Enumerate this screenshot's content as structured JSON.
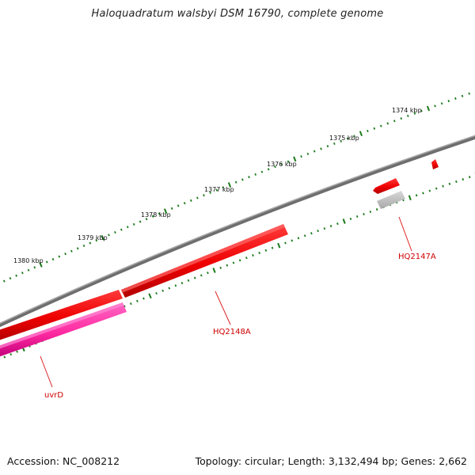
{
  "title": "Haloquadratum walsbyi DSM 16790, complete genome",
  "footer": {
    "accession": "Accession: NC_008212",
    "summary": "Topology: circular; Length: 3,132,494 bp; Genes: 2,662"
  },
  "ruler": {
    "tick_labels": [
      "1374 kbp",
      "1375 kbp",
      "1376 kbp",
      "1377 kbp",
      "1378 kbp",
      "1379 kbp",
      "1380 kbp"
    ],
    "tick_color": "#1a7a1a"
  },
  "backbone_color": "#7f7f7f",
  "genes": [
    {
      "name": "HQ2147A",
      "color": "#ff0000"
    },
    {
      "name": "HQ2148A",
      "color": "#ff0000"
    },
    {
      "name": "uvrD",
      "color": "#ff3399"
    }
  ]
}
